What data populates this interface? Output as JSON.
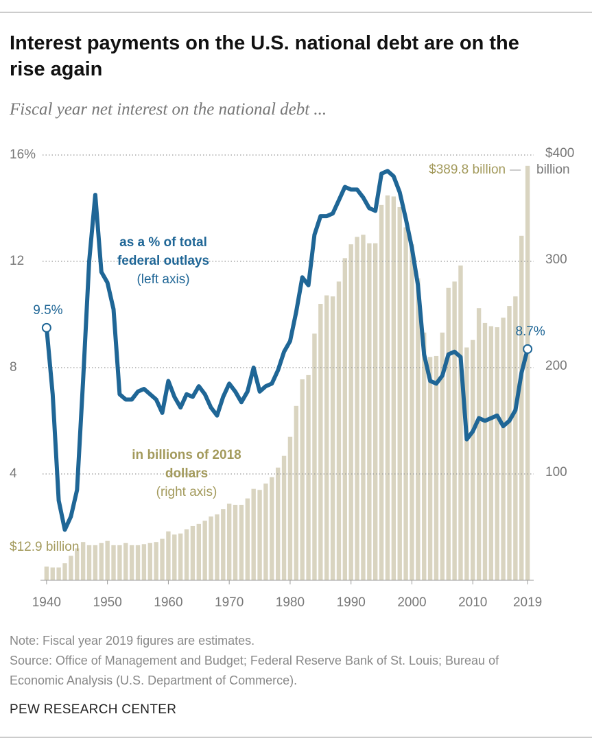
{
  "chart_data": {
    "type": "combo",
    "title": "Interest payments on the U.S. national debt are on the rise again",
    "subtitle": "Fiscal year net interest on the national debt ...",
    "x": [
      1940,
      1941,
      1942,
      1943,
      1944,
      1945,
      1946,
      1947,
      1948,
      1949,
      1950,
      1951,
      1952,
      1953,
      1954,
      1955,
      1956,
      1957,
      1958,
      1959,
      1960,
      1961,
      1962,
      1963,
      1964,
      1965,
      1966,
      1967,
      1968,
      1969,
      1970,
      1971,
      1972,
      1973,
      1974,
      1975,
      1976,
      1977,
      1978,
      1979,
      1980,
      1981,
      1982,
      1983,
      1984,
      1985,
      1986,
      1987,
      1988,
      1989,
      1990,
      1991,
      1992,
      1993,
      1994,
      1995,
      1996,
      1997,
      1998,
      1999,
      2000,
      2001,
      2002,
      2003,
      2004,
      2005,
      2006,
      2007,
      2008,
      2009,
      2010,
      2011,
      2012,
      2013,
      2014,
      2015,
      2016,
      2017,
      2018,
      2019
    ],
    "xlim": [
      1939,
      2020
    ],
    "xticks": [
      1940,
      1950,
      1960,
      1970,
      1980,
      1990,
      2000,
      2010,
      2019
    ],
    "ylim": [
      0,
      16
    ],
    "yticks": [
      {
        "value": 16,
        "label": "16%"
      },
      12,
      8,
      4
    ],
    "y2lim": [
      0,
      400
    ],
    "y2ticks": [
      {
        "value": 400,
        "label": "$400"
      },
      300,
      200,
      100
    ],
    "y2label": "billion",
    "grid": true,
    "series": [
      {
        "name": "in billions of 2018 dollars",
        "type": "bar",
        "axis": "y2",
        "color": "#d9d4c0",
        "label_color": "#a39a5c",
        "axis_label": "(right axis)",
        "values": [
          12.9,
          12,
          12,
          16,
          23,
          30,
          36,
          33,
          33,
          35,
          37,
          33,
          33,
          35,
          33,
          33,
          34,
          35,
          36,
          39,
          46,
          43,
          44,
          48,
          51,
          53,
          56,
          60,
          62,
          67,
          72,
          71,
          71,
          77,
          86,
          85,
          91,
          97,
          106,
          117,
          135,
          164,
          189,
          193,
          232,
          260,
          268,
          267,
          281,
          303,
          316,
          323,
          325,
          317,
          317,
          353,
          362,
          361,
          351,
          332,
          316,
          284,
          233,
          210,
          211,
          233,
          275,
          281,
          296,
          219,
          226,
          256,
          242,
          239,
          238,
          247,
          258,
          267,
          324,
          389.8
        ],
        "value_labels": [
          "$12.9 billion",
          null,
          null,
          null,
          null,
          null,
          null,
          null,
          null,
          null,
          null,
          null,
          null,
          null,
          null,
          null,
          null,
          null,
          null,
          null,
          null,
          null,
          null,
          null,
          null,
          null,
          null,
          null,
          null,
          null,
          null,
          null,
          null,
          null,
          null,
          null,
          null,
          null,
          null,
          null,
          null,
          null,
          null,
          null,
          null,
          null,
          null,
          null,
          null,
          null,
          null,
          null,
          null,
          null,
          null,
          null,
          null,
          null,
          null,
          null,
          null,
          null,
          null,
          null,
          null,
          null,
          null,
          null,
          null,
          null,
          null,
          null,
          null,
          null,
          null,
          null,
          null,
          null,
          null,
          "$389.8 billion"
        ]
      },
      {
        "name": "as a % of total federal outlays",
        "type": "line",
        "axis": "y",
        "color": "#1f6696",
        "label_color": "#1f6696",
        "axis_label": "(left axis)",
        "values": [
          9.5,
          7,
          3,
          1.9,
          2.4,
          3.4,
          7.5,
          12,
          14.5,
          11.6,
          11.2,
          10.2,
          7,
          6.8,
          6.8,
          7.1,
          7.2,
          7,
          6.8,
          6.3,
          7.5,
          6.9,
          6.5,
          7,
          6.9,
          7.3,
          7,
          6.5,
          6.2,
          6.9,
          7.4,
          7.1,
          6.7,
          7.1,
          8,
          7.1,
          7.3,
          7.4,
          7.9,
          8.6,
          9,
          10.1,
          11.4,
          11.1,
          13,
          13.7,
          13.7,
          13.8,
          14.3,
          14.8,
          14.7,
          14.7,
          14.4,
          14,
          13.9,
          15.3,
          15.4,
          15.2,
          14.6,
          13.6,
          12.5,
          11.1,
          8.5,
          7.5,
          7.4,
          7.7,
          8.5,
          8.6,
          8.4,
          5.3,
          5.6,
          6.1,
          6,
          6.1,
          6.2,
          5.8,
          6,
          6.4,
          7.8,
          8.7
        ],
        "value_labels": [
          "9.5%",
          null,
          null,
          null,
          null,
          null,
          null,
          null,
          null,
          null,
          null,
          null,
          null,
          null,
          null,
          null,
          null,
          null,
          null,
          null,
          null,
          null,
          null,
          null,
          null,
          null,
          null,
          null,
          null,
          null,
          null,
          null,
          null,
          null,
          null,
          null,
          null,
          null,
          null,
          null,
          null,
          null,
          null,
          null,
          null,
          null,
          null,
          null,
          null,
          null,
          null,
          null,
          null,
          null,
          null,
          null,
          null,
          null,
          null,
          null,
          null,
          null,
          null,
          null,
          null,
          null,
          null,
          null,
          null,
          null,
          null,
          null,
          null,
          null,
          null,
          null,
          null,
          null,
          null,
          "8.7%"
        ]
      }
    ],
    "note": "Note: Fiscal year 2019 figures are estimates.",
    "source": "Source: Office of Management and Budget; Federal Reserve Bank of St. Louis; Bureau of Economic Analysis (U.S. Department of Commerce).",
    "credit": "PEW RESEARCH CENTER"
  }
}
